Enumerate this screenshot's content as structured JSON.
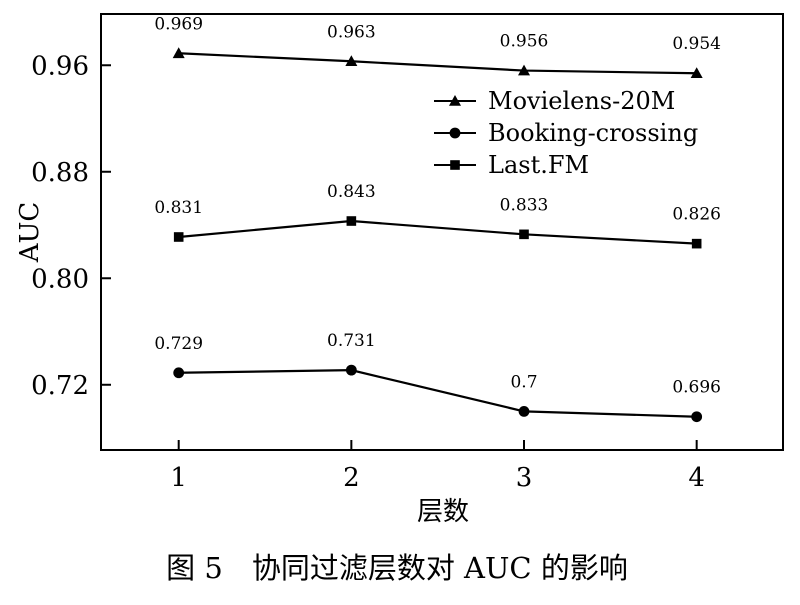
{
  "chart_data": {
    "type": "line",
    "title": "",
    "xlabel": "层数",
    "ylabel": "AUC",
    "x": [
      1,
      2,
      3,
      4
    ],
    "xtick_labels": [
      "1",
      "2",
      "3",
      "4"
    ],
    "yticks": [
      0.72,
      0.8,
      0.88,
      0.96
    ],
    "ytick_labels": [
      "0.72",
      "0.80",
      "0.88",
      "0.96"
    ],
    "xlim": [
      0.55,
      4.5
    ],
    "ylim": [
      0.671,
      0.9985
    ],
    "grid": false,
    "legend_position": "top-right",
    "series": [
      {
        "name": "Movielens-20M",
        "marker": "triangle",
        "values": [
          0.969,
          0.963,
          0.956,
          0.954
        ],
        "labels": [
          "0.969",
          "0.963",
          "0.956",
          "0.954"
        ]
      },
      {
        "name": "Booking-crossing",
        "marker": "circle",
        "values": [
          0.729,
          0.731,
          0.7,
          0.696
        ],
        "labels": [
          "0.729",
          "0.731",
          "0.7",
          "0.696"
        ]
      },
      {
        "name": "Last.FM",
        "marker": "square",
        "values": [
          0.831,
          0.843,
          0.833,
          0.826
        ],
        "labels": [
          "0.831",
          "0.843",
          "0.833",
          "0.826"
        ]
      }
    ]
  },
  "caption": "图 5　协同过滤层数对 AUC 的影响",
  "colors": {
    "line": "#000000",
    "background": "#ffffff"
  }
}
